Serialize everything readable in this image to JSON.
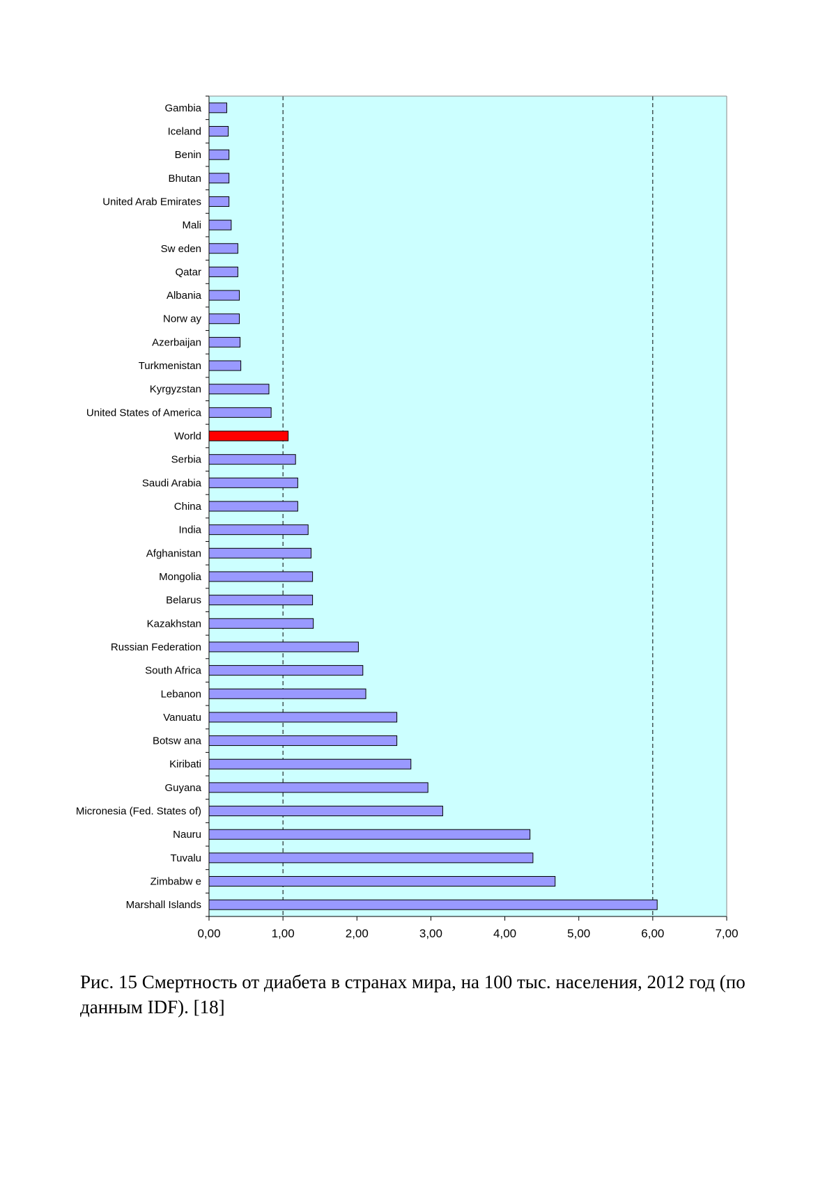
{
  "chart_data": {
    "type": "bar",
    "orientation": "horizontal",
    "categories": [
      "Gambia",
      "Iceland",
      "Benin",
      "Bhutan",
      "United Arab Emirates",
      "Mali",
      "Sw eden",
      "Qatar",
      "Albania",
      "Norw ay",
      "Azerbaijan",
      "Turkmenistan",
      "Kyrgyzstan",
      "United States of America",
      "World",
      "Serbia",
      "Saudi Arabia",
      "China",
      "India",
      "Afghanistan",
      "Mongolia",
      "Belarus",
      "Kazakhstan",
      "Russian Federation",
      "South Africa",
      "Lebanon",
      "Vanuatu",
      "Botsw ana",
      "Kiribati",
      "Guyana",
      "Micronesia (Fed. States of)",
      "Nauru",
      "Tuvalu",
      "Zimbabw e",
      "Marshall Islands"
    ],
    "values": [
      0.24,
      0.26,
      0.27,
      0.27,
      0.27,
      0.3,
      0.39,
      0.39,
      0.41,
      0.41,
      0.42,
      0.43,
      0.81,
      0.84,
      1.07,
      1.17,
      1.2,
      1.2,
      1.34,
      1.38,
      1.4,
      1.4,
      1.41,
      2.02,
      2.08,
      2.12,
      2.54,
      2.54,
      2.73,
      2.96,
      3.16,
      4.34,
      4.38,
      4.68,
      6.06
    ],
    "highlight": {
      "category": "World",
      "color": "#ff0000"
    },
    "bar_color": "#9999ff",
    "background_color": "#ccffff",
    "xlim": [
      0,
      7
    ],
    "x_ticks": [
      "0,00",
      "1,00",
      "2,00",
      "3,00",
      "4,00",
      "5,00",
      "6,00",
      "7,00"
    ],
    "gridlines": {
      "values": [
        1,
        6
      ],
      "style": "dashed"
    },
    "title": "",
    "xlabel": "",
    "ylabel": ""
  },
  "caption": "Рис. 15 Смертность от диабета в странах мира, на 100 тыс. населения, 2012 год (по данным IDF). [18]"
}
